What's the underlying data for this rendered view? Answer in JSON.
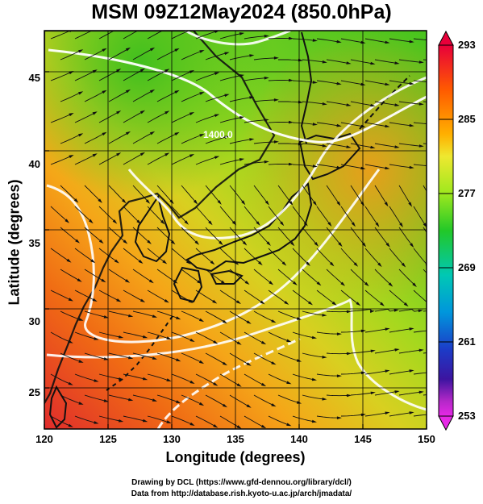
{
  "title": "MSM 09Z12May2024 (850.0hPa)",
  "xlabel": "Longitude (degrees)",
  "ylabel": "Latitude  (degrees)",
  "credits": [
    "Drawing by DCL (https://www.gfd-dennou.org/library/dcl/)",
    "Data from http://database.rish.kyoto-u.ac.jp/arch/jmadata/"
  ],
  "map": {
    "lon_range": [
      120,
      150
    ],
    "lat_range": [
      22.4,
      47.6
    ],
    "lon_ticks": [
      "120",
      "125",
      "130",
      "135",
      "140",
      "145",
      "150"
    ],
    "lat_ticks": [
      "25",
      "30",
      "35",
      "40",
      "45"
    ],
    "contour_label": "1400.0",
    "colorbar": {
      "labels": [
        "293",
        "285",
        "277",
        "269",
        "261",
        "253"
      ],
      "stops": [
        "#e8005a",
        "#ff5500",
        "#ffaa00",
        "#f0e830",
        "#a8e820",
        "#28c828",
        "#00c8a0",
        "#0096dc",
        "#1e4ac8",
        "#1414a0",
        "#b428c8",
        "#e628e6"
      ]
    }
  },
  "chart_data": {
    "type": "heatmap",
    "title": "MSM 09Z12May2024 (850.0hPa)",
    "xlabel": "Longitude (degrees)",
    "ylabel": "Latitude  (degrees)",
    "xlim": [
      120,
      150
    ],
    "ylim": [
      22.4,
      47.6
    ],
    "colorbar_range": [
      253,
      293
    ],
    "colorbar_ticks": [
      293,
      285,
      277,
      269,
      261,
      253
    ],
    "contour_level": 1400.0
  }
}
